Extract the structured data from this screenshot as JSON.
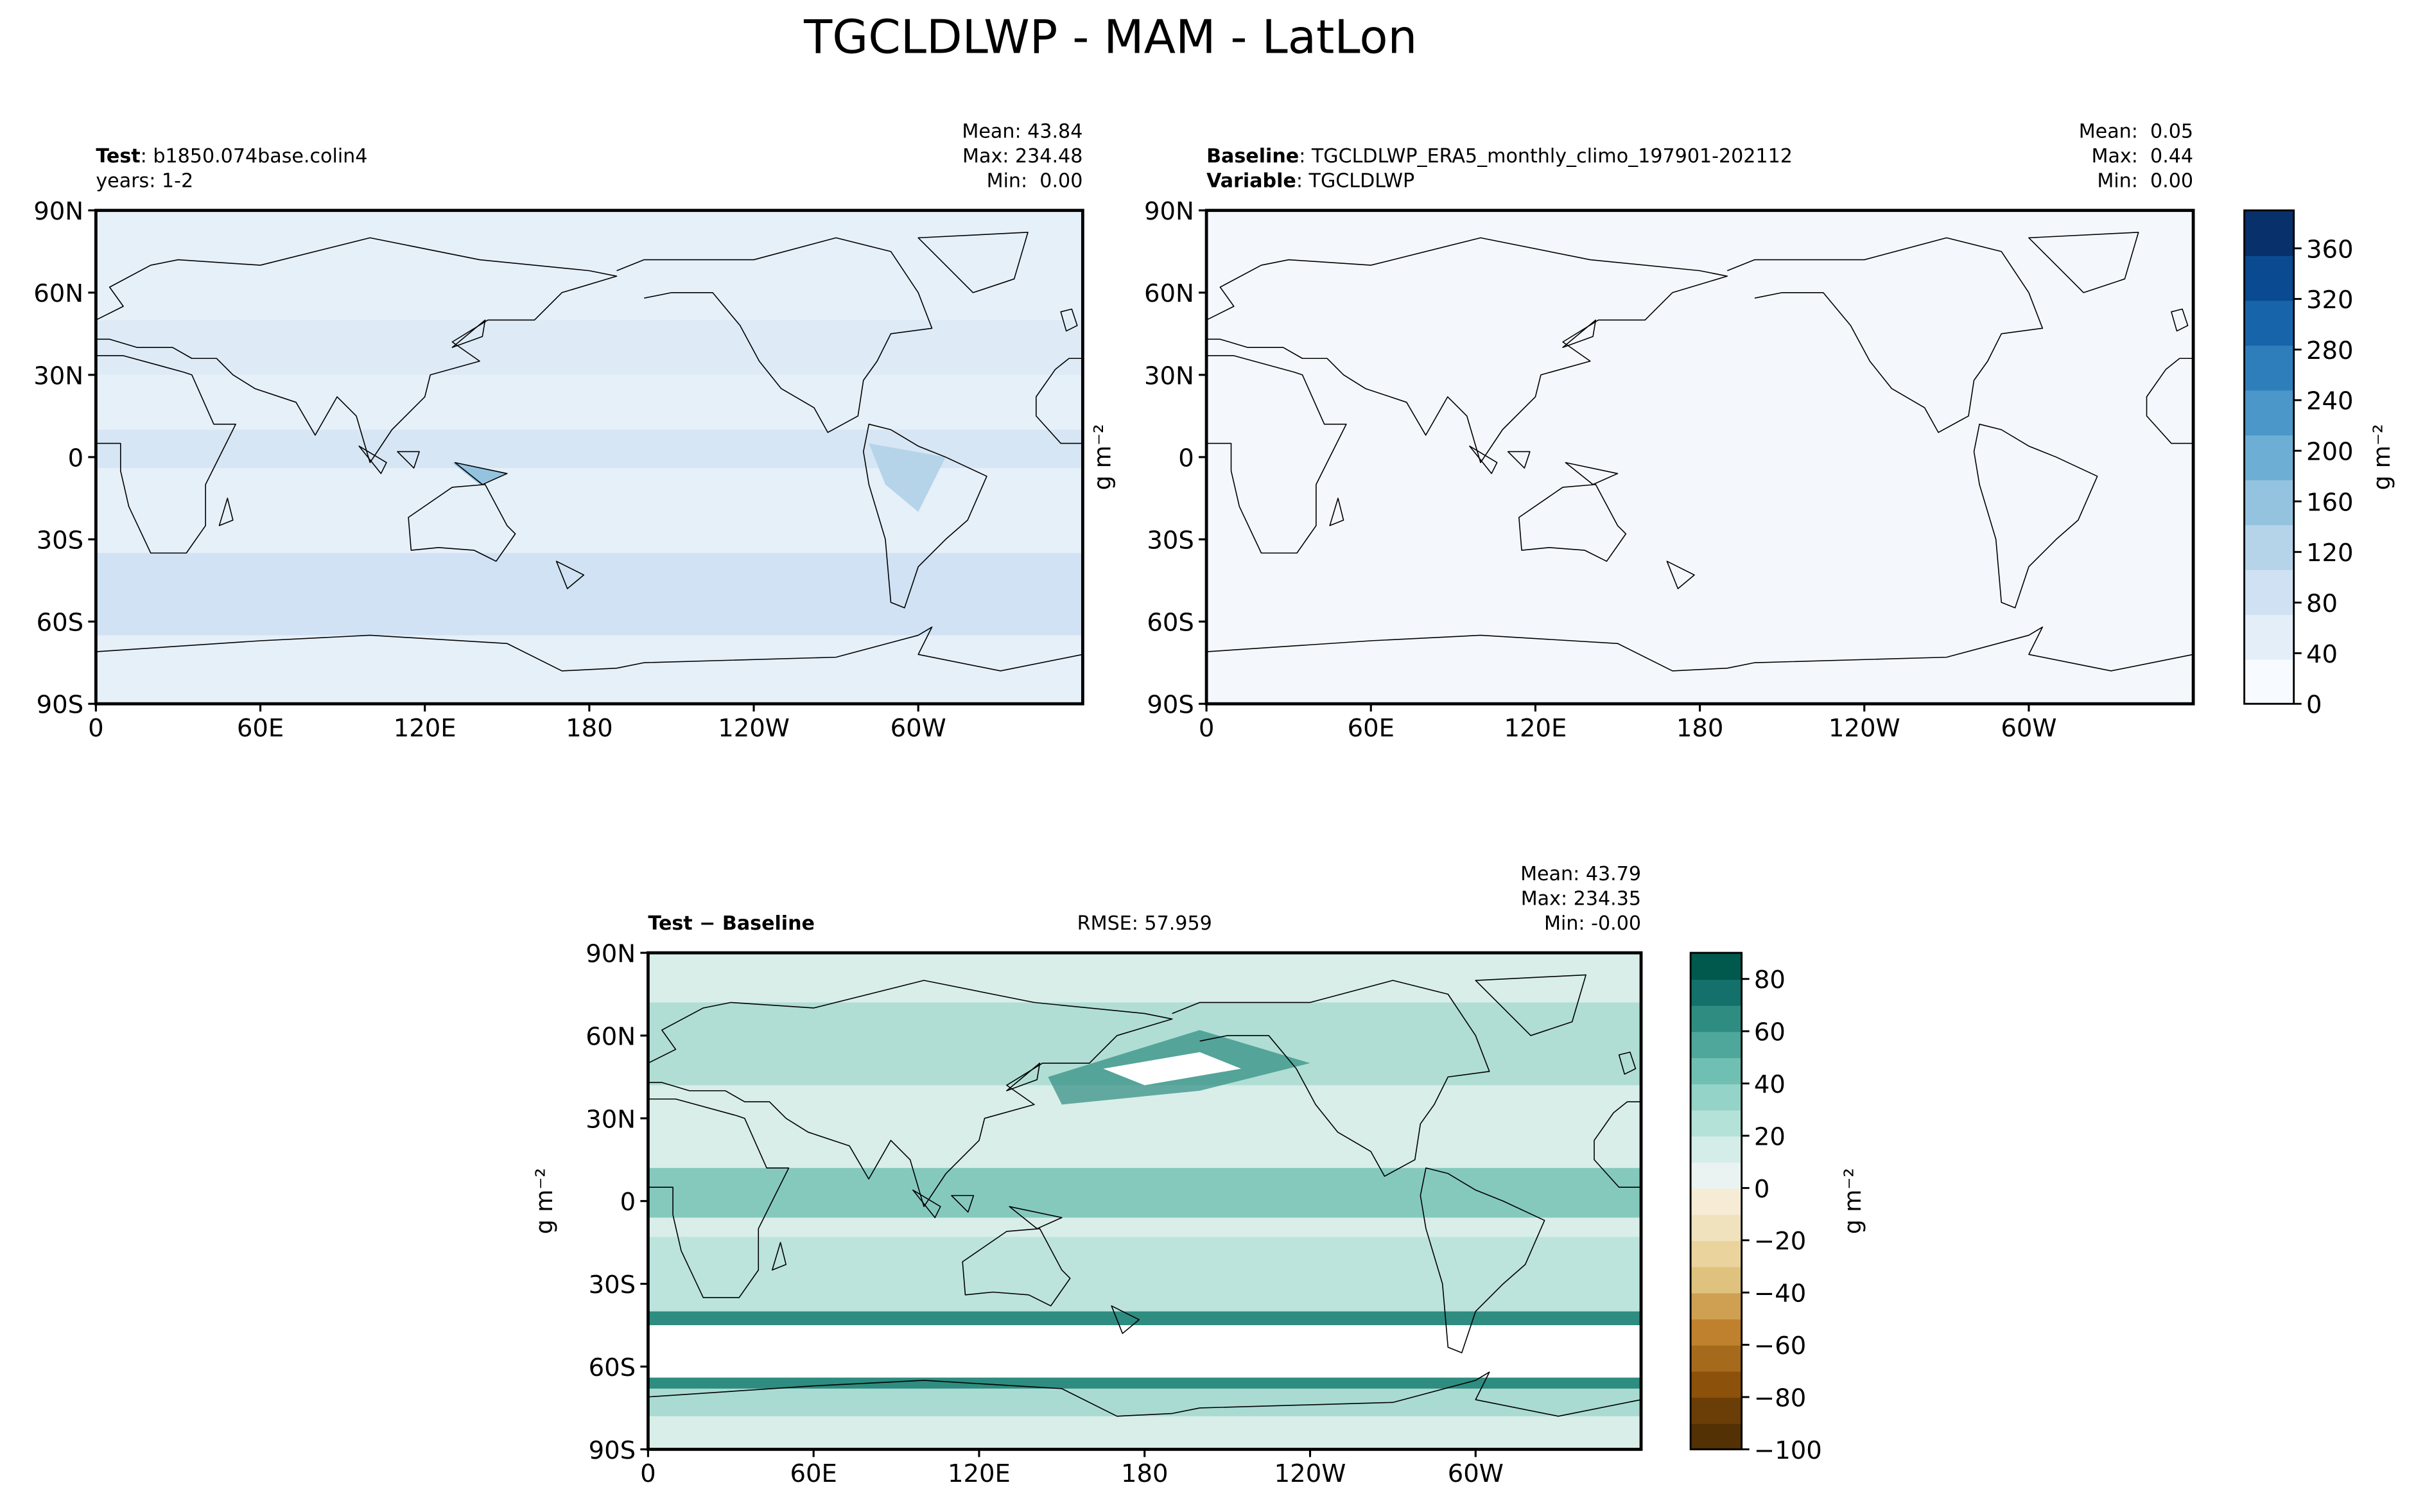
{
  "title": "TGCLDLWP - MAM - LatLon",
  "chart_data": [
    {
      "type": "map",
      "title_bold": "Test",
      "title": ": b1850.074base.colin4",
      "subtitle": "years: 1-2",
      "stats": [
        "Mean: 43.84",
        "Max: 234.48",
        "Min:  0.00"
      ],
      "xlim": [
        0,
        360
      ],
      "ylim": [
        -90,
        90
      ],
      "xticks": [
        0,
        {
          "value": 60,
          "label": "60E"
        },
        {
          "value": 120,
          "label": "120E"
        },
        180,
        {
          "value": 240,
          "label": "120W"
        },
        {
          "value": 300,
          "label": "60W"
        }
      ],
      "yticks": [
        {
          "value": -90,
          "label": "90S"
        },
        {
          "value": -60,
          "label": "60S"
        },
        {
          "value": -30,
          "label": "30S"
        },
        0,
        {
          "value": 30,
          "label": "30N"
        },
        {
          "value": 60,
          "label": "60N"
        },
        {
          "value": 90,
          "label": "90N"
        }
      ],
      "color": "#e6f0f9"
    },
    {
      "type": "map",
      "title_bold": "Baseline",
      "title": ": TGCLDLWP_ERA5_monthly_climo_197901-202112",
      "subtitle_bold": "Variable",
      "subtitle": ": TGCLDLWP",
      "stats": [
        "Mean:  0.05",
        "Max:  0.44",
        "Min:  0.00"
      ],
      "ylabel": "g m⁻²",
      "xlim": [
        0,
        360
      ],
      "ylim": [
        -90,
        90
      ],
      "xticks": [
        0,
        {
          "value": 60,
          "label": "60E"
        },
        {
          "value": 120,
          "label": "120E"
        },
        180,
        {
          "value": 240,
          "label": "120W"
        },
        {
          "value": 300,
          "label": "60W"
        }
      ],
      "yticks": [
        {
          "value": -90,
          "label": "90S"
        },
        {
          "value": -60,
          "label": "60S"
        },
        {
          "value": -30,
          "label": "30S"
        },
        0,
        {
          "value": 30,
          "label": "30N"
        },
        {
          "value": 60,
          "label": "60N"
        },
        {
          "value": 90,
          "label": "90N"
        }
      ],
      "color": "#f4f8fd"
    },
    {
      "type": "colorbar",
      "ylim": [
        0,
        390
      ],
      "yticks": [
        0,
        40,
        80,
        120,
        160,
        200,
        240,
        280,
        320,
        360
      ],
      "ylabel": "g m⁻²",
      "colors": [
        "#f7fbff",
        "#e3eef9",
        "#cfe1f2",
        "#b5d4e9",
        "#93c3df",
        "#6daed5",
        "#4b97c9",
        "#2f7ebc",
        "#1864aa",
        "#0a4a90",
        "#08306b"
      ]
    },
    {
      "type": "map",
      "title_bold": "Test − Baseline",
      "annotation": "RMSE: 57.959",
      "stats": [
        "Mean: 43.79",
        "Max: 234.35",
        "Min: -0.00"
      ],
      "ylabel": "g m⁻²",
      "xlim": [
        0,
        360
      ],
      "ylim": [
        -90,
        90
      ],
      "xticks": [
        0,
        {
          "value": 60,
          "label": "60E"
        },
        {
          "value": 120,
          "label": "120E"
        },
        180,
        {
          "value": 240,
          "label": "120W"
        },
        {
          "value": 300,
          "label": "60W"
        }
      ],
      "yticks": [
        {
          "value": -90,
          "label": "90S"
        },
        {
          "value": -60,
          "label": "60S"
        },
        {
          "value": -30,
          "label": "30S"
        },
        0,
        {
          "value": 30,
          "label": "30N"
        },
        {
          "value": 60,
          "label": "60N"
        },
        {
          "value": 90,
          "label": "90N"
        }
      ],
      "color": "#d9eee9"
    },
    {
      "type": "colorbar",
      "ylim": [
        -100,
        90
      ],
      "yticks": [
        {
          "value": -100,
          "label": "−100"
        },
        {
          "value": -80,
          "label": "−80"
        },
        {
          "value": -60,
          "label": "−60"
        },
        {
          "value": -40,
          "label": "−40"
        },
        {
          "value": -20,
          "label": "−20"
        },
        0,
        20,
        40,
        60,
        80
      ],
      "ylabel": "g m⁻²",
      "colors": [
        "#543005",
        "#6b3d07",
        "#8c510a",
        "#a66a1c",
        "#bf812d",
        "#cfa052",
        "#dfc27d",
        "#ead39d",
        "#f0e2bd",
        "#f6ecd5",
        "#eaf3f1",
        "#d4ede8",
        "#b4e1d8",
        "#94d3c7",
        "#6fbfb2",
        "#4ea79a",
        "#2e8c80",
        "#13706a",
        "#01584c"
      ]
    }
  ]
}
